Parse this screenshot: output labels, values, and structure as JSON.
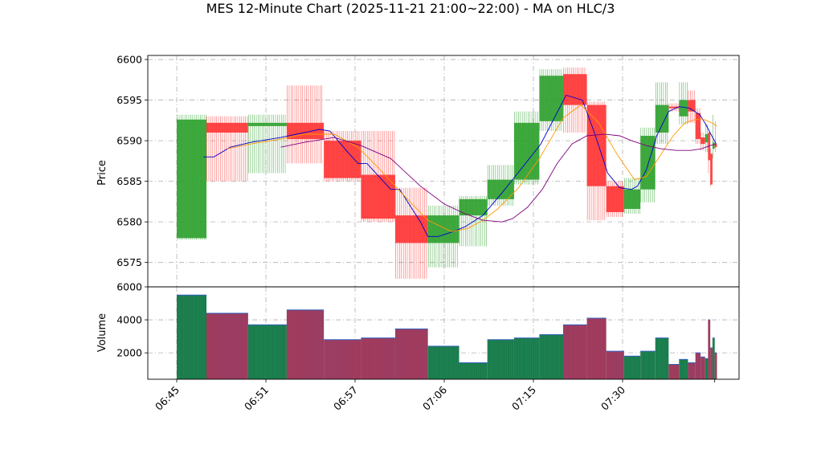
{
  "chart_data": {
    "type": "candlestick",
    "title": "MES 12-Minute Chart (2025-11-21 21:00~22:00) - MA on HLC/3",
    "price_panel": {
      "ylabel": "Price",
      "ylim": [
        6572,
        6600.5
      ],
      "yticks": [
        "6575",
        "6580",
        "6585",
        "6590",
        "6595",
        "6600"
      ],
      "grid": true
    },
    "volume_panel": {
      "ylabel": "Volume",
      "ylim": [
        400,
        6000
      ],
      "yticks": [
        "2000",
        "4000",
        "6000"
      ],
      "grid": true
    },
    "x_axis": {
      "tick_labels": [
        "06:45",
        "06:51",
        "06:57",
        "07:06",
        "07:15",
        "07:30"
      ],
      "tick_positions": [
        0,
        6,
        12,
        18,
        24,
        30
      ],
      "rotation": 45
    },
    "colors": {
      "up": "#2ca02c",
      "down": "#ff3333",
      "ma_fast": "#0000cc",
      "ma_mid": "#ff9900",
      "ma_slow": "#800080",
      "vol_up": "#1a7a4a",
      "vol_down": "#a03a5a"
    },
    "candles": [
      {
        "x0": 0.0,
        "x1": 2.0,
        "open": 6578.0,
        "close": 6592.6,
        "high": 6593.2,
        "low": 6577.8,
        "volume": 5500
      },
      {
        "x0": 2.0,
        "x1": 4.8,
        "open": 6592.2,
        "close": 6591.0,
        "high": 6593.0,
        "low": 6585.0,
        "volume": 4400
      },
      {
        "x0": 4.8,
        "x1": 7.4,
        "open": 6591.8,
        "close": 6592.2,
        "high": 6593.2,
        "low": 6586.0,
        "volume": 3700
      },
      {
        "x0": 7.4,
        "x1": 9.9,
        "open": 6592.2,
        "close": 6590.2,
        "high": 6596.8,
        "low": 6587.2,
        "volume": 4600
      },
      {
        "x0": 9.9,
        "x1": 12.4,
        "open": 6590.0,
        "close": 6585.4,
        "high": 6591.2,
        "low": 6585.0,
        "volume": 2800
      },
      {
        "x0": 12.4,
        "x1": 14.7,
        "open": 6585.8,
        "close": 6580.4,
        "high": 6591.2,
        "low": 6580.0,
        "volume": 2900
      },
      {
        "x0": 14.7,
        "x1": 16.9,
        "open": 6580.8,
        "close": 6577.4,
        "high": 6584.2,
        "low": 6573.0,
        "volume": 3450
      },
      {
        "x0": 16.9,
        "x1": 19.0,
        "open": 6577.4,
        "close": 6580.8,
        "high": 6582.0,
        "low": 6574.4,
        "volume": 2400
      },
      {
        "x0": 19.0,
        "x1": 20.9,
        "open": 6580.8,
        "close": 6582.8,
        "high": 6583.2,
        "low": 6577.0,
        "volume": 1400
      },
      {
        "x0": 20.9,
        "x1": 22.7,
        "open": 6582.8,
        "close": 6585.2,
        "high": 6587.0,
        "low": 6582.0,
        "volume": 2800
      },
      {
        "x0": 22.7,
        "x1": 24.4,
        "open": 6585.2,
        "close": 6592.2,
        "high": 6593.6,
        "low": 6584.6,
        "volume": 2900
      },
      {
        "x0": 24.4,
        "x1": 26.0,
        "open": 6592.4,
        "close": 6598.0,
        "high": 6598.8,
        "low": 6591.2,
        "volume": 3100
      },
      {
        "x0": 26.0,
        "x1": 27.6,
        "open": 6598.2,
        "close": 6594.4,
        "high": 6599.0,
        "low": 6591.0,
        "volume": 3700
      },
      {
        "x0": 27.6,
        "x1": 28.9,
        "open": 6594.4,
        "close": 6584.4,
        "high": 6594.8,
        "low": 6580.2,
        "volume": 4100
      },
      {
        "x0": 28.9,
        "x1": 30.1,
        "open": 6584.4,
        "close": 6581.2,
        "high": 6585.0,
        "low": 6580.6,
        "volume": 2100
      },
      {
        "x0": 30.1,
        "x1": 31.2,
        "open": 6581.6,
        "close": 6584.0,
        "high": 6585.4,
        "low": 6581.0,
        "volume": 1800
      },
      {
        "x0": 31.2,
        "x1": 32.2,
        "open": 6584.0,
        "close": 6590.6,
        "high": 6591.6,
        "low": 6582.4,
        "volume": 2100
      },
      {
        "x0": 32.2,
        "x1": 33.1,
        "open": 6591.0,
        "close": 6594.4,
        "high": 6597.2,
        "low": 6589.6,
        "volume": 2900
      },
      {
        "x0": 33.1,
        "x1": 33.8,
        "open": 6594.2,
        "close": 6594.0,
        "high": 6594.6,
        "low": 6593.6,
        "volume": 1300
      },
      {
        "x0": 33.8,
        "x1": 34.4,
        "open": 6593.0,
        "close": 6595.0,
        "high": 6597.2,
        "low": 6592.0,
        "volume": 1600
      },
      {
        "x0": 34.4,
        "x1": 34.9,
        "open": 6595.0,
        "close": 6593.6,
        "high": 6596.2,
        "low": 6592.2,
        "volume": 1400
      },
      {
        "x0": 34.9,
        "x1": 35.25,
        "open": 6593.4,
        "close": 6590.2,
        "high": 6594.0,
        "low": 6589.6,
        "volume": 2000
      },
      {
        "x0": 35.25,
        "x1": 35.55,
        "open": 6590.4,
        "close": 6589.6,
        "high": 6591.0,
        "low": 6588.8,
        "volume": 1750
      },
      {
        "x0": 35.55,
        "x1": 35.75,
        "open": 6589.8,
        "close": 6590.8,
        "high": 6592.0,
        "low": 6588.6,
        "volume": 1650
      },
      {
        "x0": 35.75,
        "x1": 35.9,
        "open": 6591.0,
        "close": 6587.6,
        "high": 6591.0,
        "low": 6586.0,
        "volume": 4000
      },
      {
        "x0": 35.9,
        "x1": 36.05,
        "open": 6588.4,
        "close": 6584.6,
        "high": 6589.0,
        "low": 6584.4,
        "volume": 2300
      },
      {
        "x0": 36.05,
        "x1": 36.2,
        "open": 6589.0,
        "close": 6589.8,
        "high": 6593.2,
        "low": 6587.8,
        "volume": 2900
      },
      {
        "x0": 36.2,
        "x1": 36.35,
        "open": 6589.6,
        "close": 6589.2,
        "high": 6592.4,
        "low": 6588.6,
        "volume": 2000
      }
    ],
    "ma_series": [
      {
        "color": "#0000cc",
        "points": [
          [
            1.8,
            6588.0
          ],
          [
            2.5,
            6588.0
          ],
          [
            3.6,
            6589.2
          ],
          [
            5.0,
            6589.8
          ],
          [
            7.0,
            6590.4
          ],
          [
            8.6,
            6591.0
          ],
          [
            9.6,
            6591.4
          ],
          [
            10.3,
            6591.2
          ],
          [
            11.5,
            6588.6
          ],
          [
            12.2,
            6587.2
          ],
          [
            12.8,
            6587.2
          ],
          [
            14.4,
            6584.0
          ],
          [
            15.0,
            6584.0
          ],
          [
            16.4,
            6580.0
          ],
          [
            16.9,
            6578.2
          ],
          [
            17.6,
            6578.2
          ],
          [
            18.6,
            6578.8
          ],
          [
            19.4,
            6579.4
          ],
          [
            20.6,
            6580.8
          ],
          [
            21.9,
            6583.6
          ],
          [
            23.3,
            6586.8
          ],
          [
            24.5,
            6589.6
          ],
          [
            26.2,
            6595.6
          ],
          [
            27.3,
            6595.0
          ],
          [
            28.1,
            6591.0
          ],
          [
            29.0,
            6586.0
          ],
          [
            29.8,
            6584.2
          ],
          [
            30.6,
            6584.0
          ],
          [
            31.0,
            6584.4
          ],
          [
            31.6,
            6586.4
          ],
          [
            32.3,
            6590.6
          ],
          [
            33.1,
            6593.6
          ],
          [
            33.8,
            6594.2
          ],
          [
            34.5,
            6594.0
          ],
          [
            35.2,
            6593.2
          ],
          [
            35.6,
            6592.0
          ],
          [
            36.0,
            6590.6
          ],
          [
            36.3,
            6589.6
          ]
        ]
      },
      {
        "color": "#ff9900",
        "points": [
          [
            3.4,
            6589.0
          ],
          [
            5.0,
            6589.6
          ],
          [
            7.0,
            6590.2
          ],
          [
            8.6,
            6590.8
          ],
          [
            10.6,
            6590.8
          ],
          [
            12.2,
            6589.2
          ],
          [
            13.6,
            6586.6
          ],
          [
            15.0,
            6583.8
          ],
          [
            16.9,
            6580.2
          ],
          [
            18.5,
            6578.8
          ],
          [
            19.6,
            6579.2
          ],
          [
            20.6,
            6580.2
          ],
          [
            21.6,
            6581.6
          ],
          [
            23.0,
            6584.2
          ],
          [
            24.4,
            6587.8
          ],
          [
            26.0,
            6592.8
          ],
          [
            27.2,
            6594.4
          ],
          [
            28.4,
            6592.2
          ],
          [
            29.6,
            6588.4
          ],
          [
            30.8,
            6585.2
          ],
          [
            31.6,
            6585.6
          ],
          [
            32.4,
            6587.8
          ],
          [
            33.4,
            6590.6
          ],
          [
            34.2,
            6592.2
          ],
          [
            34.9,
            6592.6
          ],
          [
            35.5,
            6592.6
          ],
          [
            36.0,
            6592.2
          ],
          [
            36.35,
            6591.8
          ]
        ]
      },
      {
        "color": "#800080",
        "points": [
          [
            7.0,
            6589.2
          ],
          [
            8.6,
            6589.8
          ],
          [
            10.6,
            6590.4
          ],
          [
            12.4,
            6589.4
          ],
          [
            14.4,
            6587.8
          ],
          [
            16.4,
            6584.4
          ],
          [
            18.0,
            6582.2
          ],
          [
            19.4,
            6581.0
          ],
          [
            20.6,
            6580.2
          ],
          [
            21.9,
            6580.0
          ],
          [
            22.6,
            6580.4
          ],
          [
            23.6,
            6581.8
          ],
          [
            24.6,
            6584.0
          ],
          [
            25.6,
            6587.2
          ],
          [
            26.6,
            6589.6
          ],
          [
            27.6,
            6590.6
          ],
          [
            28.8,
            6590.8
          ],
          [
            29.8,
            6590.6
          ],
          [
            30.6,
            6590.0
          ],
          [
            31.6,
            6589.4
          ],
          [
            32.6,
            6589.0
          ],
          [
            33.6,
            6588.8
          ],
          [
            34.6,
            6588.8
          ],
          [
            35.3,
            6589.0
          ],
          [
            35.9,
            6589.4
          ],
          [
            36.3,
            6589.6
          ]
        ]
      }
    ]
  }
}
